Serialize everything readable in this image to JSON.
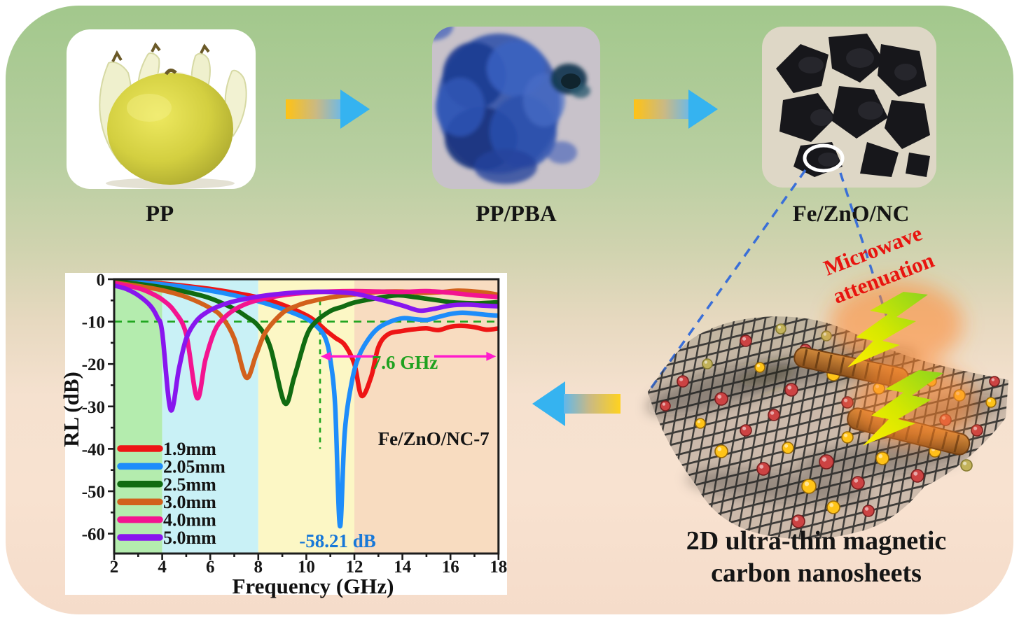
{
  "flow": {
    "steps": [
      {
        "label": "PP",
        "image": "pomelo-peel-photo"
      },
      {
        "label": "PP/PBA",
        "image": "blue-prussian-analogue-photo"
      },
      {
        "label": "Fe/ZnO/NC",
        "image": "black-carbon-product-photo"
      }
    ]
  },
  "illustration": {
    "microwave_line1": "Microwave",
    "microwave_line2": "attenuation",
    "caption_line1": "2D ultra-thin magnetic",
    "caption_line2": "carbon nanosheets"
  },
  "colors": {
    "microwave_text": "#e8140f",
    "panel": "#ffffff",
    "axis": "#1c1c1c",
    "dash_green": "#1fa51f",
    "arrow_magenta": "#ff1ccc",
    "min_label_blue": "#1878d8",
    "flow_arrow_yellow": "#ffc214",
    "flow_arrow_blue": "#35b3f0",
    "mesh": "#3d3b38",
    "curl": "#b06a28",
    "bolt_green": "#8bd41e",
    "bolt_yellow": "#ffee00",
    "bolt_glow": "#ff8632",
    "dash_blue": "#3a6fd8",
    "sphere_red": "#cc4343",
    "sphere_gold": "#ffc418",
    "sphere_olive": "#c2b25a"
  },
  "chart_data": {
    "type": "line",
    "xlabel": "Frequency (GHz)",
    "ylabel": "RL (dB)",
    "xlim": [
      2,
      18
    ],
    "ylim": [
      -64.5,
      0
    ],
    "x_ticks": [
      2,
      4,
      6,
      8,
      10,
      12,
      14,
      16,
      18
    ],
    "y_ticks": [
      0,
      -10,
      -20,
      -30,
      -40,
      -50,
      -60
    ],
    "x_minor_ticks": [
      3,
      5,
      7,
      9,
      11,
      13,
      15,
      17
    ],
    "y_minor_ticks": [
      -5,
      -15,
      -25,
      -35,
      -45,
      -55
    ],
    "grid": false,
    "legend_position": "lower-left",
    "bands": [
      {
        "from": 2,
        "to": 4,
        "color": "#b4ecae"
      },
      {
        "from": 4,
        "to": 8,
        "color": "#c9f1f6"
      },
      {
        "from": 8,
        "to": 12,
        "color": "#fcf7c5"
      },
      {
        "from": 12,
        "to": 18,
        "color": "#f8dcc0"
      }
    ],
    "legend": [
      {
        "label": "1.9mm",
        "color": "#ee1515"
      },
      {
        "label": "2.05mm",
        "color": "#1e8dfa"
      },
      {
        "label": "2.5mm",
        "color": "#116b11"
      },
      {
        "label": "3.0mm",
        "color": "#d2611c"
      },
      {
        "label": "4.0mm",
        "color": "#f31490"
      },
      {
        "label": "5.0mm",
        "color": "#8816ee"
      }
    ],
    "series": [
      {
        "name": "1.9mm",
        "color": "#ee1515",
        "points": [
          [
            2,
            -0.3
          ],
          [
            3,
            -0.6
          ],
          [
            4,
            -1.0
          ],
          [
            5,
            -1.6
          ],
          [
            6,
            -2.3
          ],
          [
            7,
            -3.2
          ],
          [
            8,
            -4.3
          ],
          [
            9,
            -6.0
          ],
          [
            10,
            -8.5
          ],
          [
            10.4,
            -10.0
          ],
          [
            10.8,
            -12.0
          ],
          [
            11.2,
            -13.8
          ],
          [
            11.6,
            -15.5
          ],
          [
            12,
            -20.0
          ],
          [
            12.3,
            -27.5
          ],
          [
            12.7,
            -23.0
          ],
          [
            13,
            -16.0
          ],
          [
            13.4,
            -13.0
          ],
          [
            14,
            -12.2
          ],
          [
            14.5,
            -11.8
          ],
          [
            15,
            -11.6
          ],
          [
            15.5,
            -12.0
          ],
          [
            16,
            -11.2
          ],
          [
            16.5,
            -11.0
          ],
          [
            17,
            -11.3
          ],
          [
            17.5,
            -11.9
          ],
          [
            18,
            -11.6
          ]
        ]
      },
      {
        "name": "2.05mm",
        "color": "#1e8dfa",
        "points": [
          [
            2,
            -0.3
          ],
          [
            3,
            -0.7
          ],
          [
            4,
            -1.2
          ],
          [
            5,
            -1.9
          ],
          [
            6,
            -2.7
          ],
          [
            7,
            -3.8
          ],
          [
            8,
            -5.2
          ],
          [
            9,
            -7.0
          ],
          [
            10,
            -9.3
          ],
          [
            10.5,
            -11.5
          ],
          [
            10.8,
            -14.0
          ],
          [
            11,
            -19.0
          ],
          [
            11.2,
            -30.0
          ],
          [
            11.4,
            -58.21
          ],
          [
            11.6,
            -36.0
          ],
          [
            11.9,
            -24.0
          ],
          [
            12.2,
            -18.0
          ],
          [
            12.6,
            -14.0
          ],
          [
            13,
            -11.5
          ],
          [
            13.5,
            -10.0
          ],
          [
            14,
            -9.2
          ],
          [
            14.5,
            -9.4
          ],
          [
            15,
            -9.6
          ],
          [
            15.5,
            -8.9
          ],
          [
            16,
            -8.2
          ],
          [
            16.5,
            -7.9
          ],
          [
            17,
            -8.1
          ],
          [
            17.5,
            -8.4
          ],
          [
            18,
            -8.6
          ]
        ]
      },
      {
        "name": "2.5mm",
        "color": "#116b11",
        "points": [
          [
            2,
            -0.5
          ],
          [
            3,
            -1.1
          ],
          [
            4,
            -1.9
          ],
          [
            5,
            -3.0
          ],
          [
            6,
            -4.5
          ],
          [
            7,
            -7.0
          ],
          [
            7.5,
            -8.8
          ],
          [
            8,
            -11.0
          ],
          [
            8.5,
            -16.0
          ],
          [
            9.1,
            -29.2
          ],
          [
            9.5,
            -23.0
          ],
          [
            10,
            -13.5
          ],
          [
            10.4,
            -10.0
          ],
          [
            11,
            -7.5
          ],
          [
            11.5,
            -6.5
          ],
          [
            12,
            -5.5
          ],
          [
            13,
            -4.4
          ],
          [
            13.8,
            -3.8
          ],
          [
            14.5,
            -4.2
          ],
          [
            15,
            -4.6
          ],
          [
            15.5,
            -5.0
          ],
          [
            16,
            -5.4
          ],
          [
            16.5,
            -5.6
          ],
          [
            17,
            -5.7
          ],
          [
            17.5,
            -5.6
          ],
          [
            18,
            -5.4
          ]
        ]
      },
      {
        "name": "3.0mm",
        "color": "#d2611c",
        "points": [
          [
            2,
            -0.8
          ],
          [
            3,
            -1.6
          ],
          [
            4,
            -2.6
          ],
          [
            5,
            -4.2
          ],
          [
            6,
            -6.8
          ],
          [
            6.5,
            -9.0
          ],
          [
            7,
            -14.0
          ],
          [
            7.5,
            -23.2
          ],
          [
            7.9,
            -18.0
          ],
          [
            8.3,
            -12.5
          ],
          [
            9,
            -8.0
          ],
          [
            9.5,
            -6.5
          ],
          [
            10,
            -5.5
          ],
          [
            11,
            -4.3
          ],
          [
            12,
            -3.6
          ],
          [
            13,
            -3.0
          ],
          [
            14,
            -2.9
          ],
          [
            14.8,
            -3.2
          ],
          [
            15.5,
            -3.1
          ],
          [
            16.3,
            -2.7
          ],
          [
            17,
            -2.9
          ],
          [
            17.5,
            -3.2
          ],
          [
            18,
            -3.7
          ]
        ]
      },
      {
        "name": "4.0mm",
        "color": "#f31490",
        "points": [
          [
            2,
            -0.9
          ],
          [
            3,
            -2.1
          ],
          [
            3.5,
            -3.2
          ],
          [
            4,
            -4.8
          ],
          [
            4.5,
            -7.5
          ],
          [
            5,
            -13.0
          ],
          [
            5.45,
            -28.0
          ],
          [
            5.8,
            -19.0
          ],
          [
            6.2,
            -12.0
          ],
          [
            6.6,
            -9.0
          ],
          [
            7,
            -7.2
          ],
          [
            7.5,
            -5.8
          ],
          [
            8,
            -4.9
          ],
          [
            9,
            -3.8
          ],
          [
            10,
            -3.2
          ],
          [
            11,
            -2.9
          ],
          [
            12,
            -2.8
          ],
          [
            13,
            -2.9
          ],
          [
            14,
            -3.0
          ],
          [
            15,
            -2.8
          ],
          [
            16,
            -3.2
          ],
          [
            17,
            -3.8
          ],
          [
            18,
            -4.2
          ]
        ]
      },
      {
        "name": "5.0mm",
        "color": "#8816ee",
        "points": [
          [
            2,
            -1.5
          ],
          [
            2.5,
            -2.3
          ],
          [
            3,
            -3.8
          ],
          [
            3.5,
            -6.2
          ],
          [
            3.8,
            -9.0
          ],
          [
            4,
            -12.5
          ],
          [
            4.35,
            -30.8
          ],
          [
            4.7,
            -21.0
          ],
          [
            5,
            -14.0
          ],
          [
            5.4,
            -10.0
          ],
          [
            5.8,
            -8.0
          ],
          [
            6.3,
            -6.5
          ],
          [
            7,
            -5.2
          ],
          [
            8,
            -4.1
          ],
          [
            9,
            -3.4
          ],
          [
            10,
            -3.0
          ],
          [
            11,
            -3.0
          ],
          [
            12,
            -3.4
          ],
          [
            13,
            -4.7
          ],
          [
            14,
            -6.2
          ],
          [
            14.7,
            -7.4
          ],
          [
            15.3,
            -7.0
          ],
          [
            16,
            -6.2
          ],
          [
            16.7,
            -6.0
          ],
          [
            17.3,
            -6.2
          ],
          [
            18,
            -6.4
          ]
        ]
      }
    ],
    "annotations": {
      "rl_threshold_line": {
        "y": -10,
        "style": "dashed",
        "color": "#1fa51f"
      },
      "vline": {
        "x": 10.57,
        "from": -5,
        "to": -40,
        "style": "dashed",
        "color": "#1fa51f"
      },
      "bandwidth_arrow": {
        "y": -18.2,
        "from": 10.6,
        "to": 17.9,
        "color": "#ff1ccc"
      },
      "bandwidth_label": {
        "text": "7.6 GHz",
        "x": 14.1,
        "y": -19.6,
        "color": "#1fa11f"
      },
      "min_label": {
        "text": "-58.21 dB",
        "x": 11.3,
        "y": -61.7,
        "color": "#1878d8"
      },
      "sample_label": {
        "text": "Fe/ZnO/NC-7",
        "x": 15.3,
        "y": -37.6,
        "color": "#141414"
      }
    }
  }
}
